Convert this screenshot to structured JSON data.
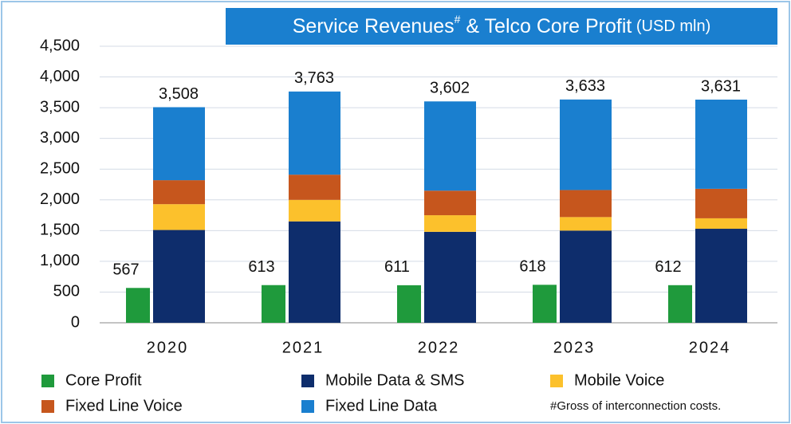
{
  "chart_data": {
    "type": "stacked_bar",
    "title_parts": [
      "Service Revenues",
      "#",
      " & Telco Core Profit",
      " (USD mln)"
    ],
    "footnote": "#Gross of interconnection costs.",
    "categories": [
      "2020",
      "2021",
      "2022",
      "2023",
      "2024"
    ],
    "series": [
      {
        "name": "Core Profit",
        "color": "#1f9a3c",
        "stack": "profit",
        "values": [
          567,
          613,
          611,
          618,
          612
        ]
      },
      {
        "name": "Mobile Data & SMS",
        "color": "#0e2d6c",
        "stack": "revenue",
        "values": [
          1510,
          1650,
          1480,
          1500,
          1530
        ]
      },
      {
        "name": "Mobile Voice",
        "color": "#fcc12c",
        "stack": "revenue",
        "values": [
          420,
          350,
          270,
          220,
          170
        ]
      },
      {
        "name": "Fixed Line Voice",
        "color": "#c6561d",
        "stack": "revenue",
        "values": [
          390,
          410,
          400,
          440,
          480
        ]
      },
      {
        "name": "Fixed Line Data",
        "color": "#1a7fcf",
        "stack": "revenue",
        "values": [
          1188,
          1353,
          1452,
          1473,
          1451
        ]
      }
    ],
    "totals": {
      "values": [
        3508,
        3763,
        3602,
        3633,
        3631
      ],
      "value_labels": [
        "3,508",
        "3,763",
        "3,602",
        "3,633",
        "3,631"
      ]
    },
    "ylim": [
      0,
      4500
    ],
    "yticks": [
      0,
      500,
      {
        "value": 1000,
        "label": "1,000"
      },
      {
        "value": 1500,
        "label": "1,500"
      },
      {
        "value": 2000,
        "label": "2,000"
      },
      {
        "value": 2500,
        "label": "2,500"
      },
      {
        "value": 3000,
        "label": "3,000"
      },
      {
        "value": 3500,
        "label": "3,500"
      },
      {
        "value": 4000,
        "label": "4,000"
      },
      {
        "value": 4500,
        "label": "4,500"
      }
    ],
    "grid": true
  }
}
